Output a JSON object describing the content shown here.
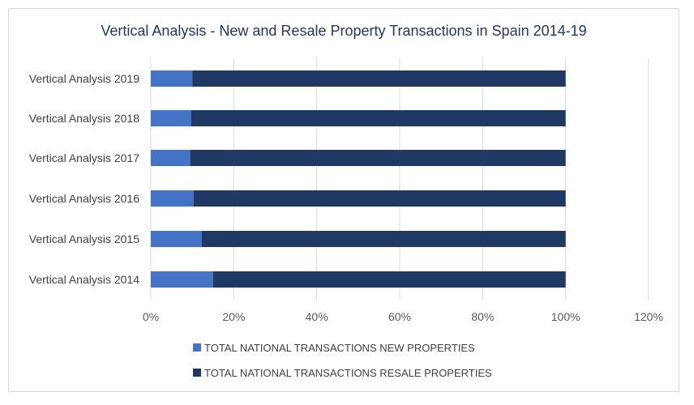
{
  "chart_data": {
    "type": "bar",
    "orientation": "horizontal",
    "stacked": "percent",
    "title": "Vertical Analysis -  New and Resale Property Transactions in Spain 2014-19",
    "categories": [
      "Vertical Analysis 2019",
      "Vertical Analysis 2018",
      "Vertical Analysis 2017",
      "Vertical Analysis 2016",
      "Vertical Analysis 2015",
      "Vertical Analysis 2014"
    ],
    "series": [
      {
        "name": "TOTAL NATIONAL TRANSACTIONS NEW PROPERTIES",
        "color": "#4472c4",
        "values": [
          0.1,
          0.097,
          0.095,
          0.103,
          0.123,
          0.15
        ]
      },
      {
        "name": "TOTAL NATIONAL TRANSACTIONS RESALE PROPERTIES",
        "color": "#203864",
        "values": [
          0.9,
          0.903,
          0.905,
          0.897,
          0.877,
          0.85
        ]
      }
    ],
    "xlim": [
      0,
      1.2
    ],
    "xticks": [
      "0%",
      "20%",
      "40%",
      "60%",
      "80%",
      "100%",
      "120%"
    ],
    "grid": true,
    "legend_position": "bottom"
  }
}
